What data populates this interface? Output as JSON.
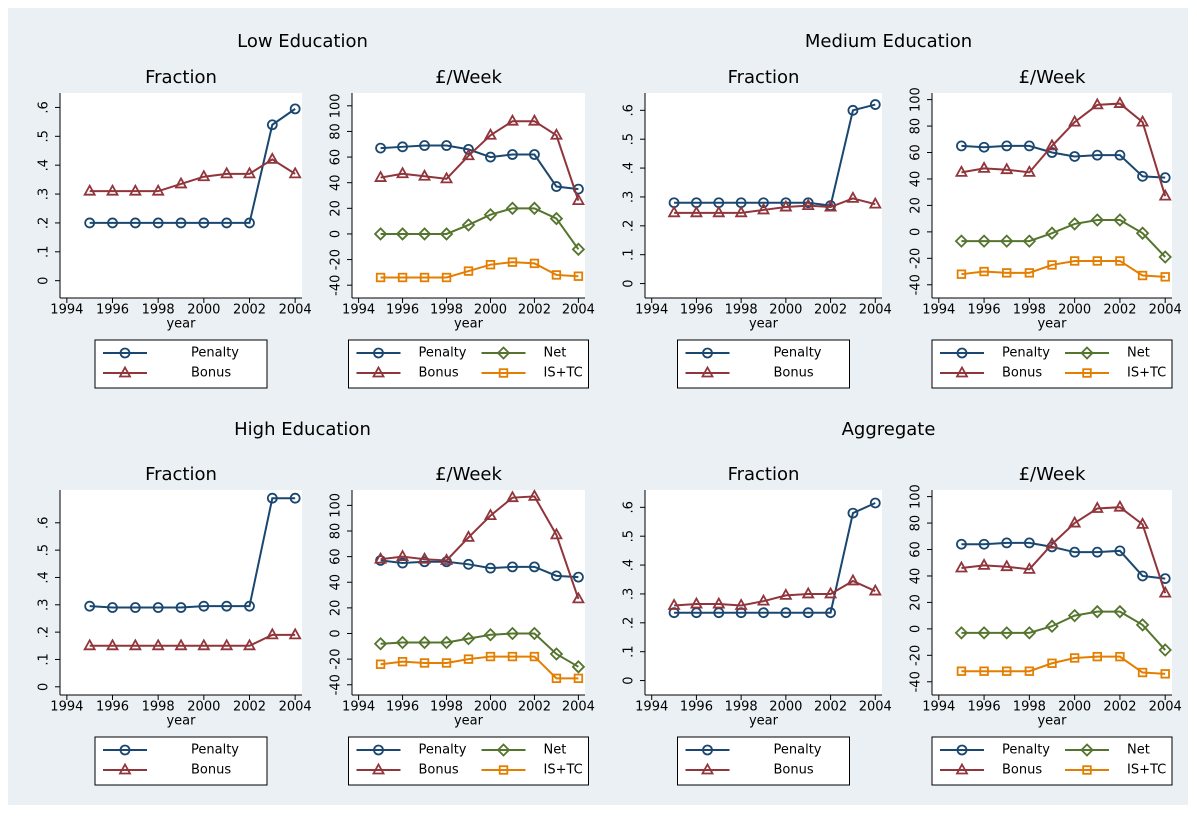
{
  "chart_data": [
    {
      "type": "line",
      "section_title": "Low Education",
      "title": "Fraction",
      "x_label": "year",
      "x": [
        1995,
        1996,
        1997,
        1998,
        1999,
        2000,
        2001,
        2002,
        2003,
        2004
      ],
      "xlim": [
        1993.7,
        2004.3
      ],
      "xticks": [
        1994,
        1996,
        1998,
        2000,
        2002,
        2004
      ],
      "ylim": [
        -0.06,
        0.65
      ],
      "yticks": [
        0,
        {
          "value": 0.1,
          "label": ".1"
        },
        {
          "value": 0.2,
          "label": ".2"
        },
        {
          "value": 0.3,
          "label": ".3"
        },
        {
          "value": 0.4,
          "label": ".4"
        },
        {
          "value": 0.5,
          "label": ".5"
        },
        {
          "value": 0.6,
          "label": ".6"
        }
      ],
      "series": [
        {
          "name": "Penalty",
          "color": "#1a476f",
          "marker": "circle",
          "values": [
            0.2,
            0.2,
            0.2,
            0.2,
            0.2,
            0.2,
            0.2,
            0.2,
            0.54,
            0.595
          ]
        },
        {
          "name": "Bonus",
          "color": "#90353b",
          "marker": "triangle",
          "values": [
            0.31,
            0.31,
            0.31,
            0.31,
            0.335,
            0.36,
            0.37,
            0.37,
            0.42,
            0.37
          ]
        }
      ]
    },
    {
      "type": "line",
      "title": "£/Week",
      "x_label": "year",
      "x": [
        1995,
        1996,
        1997,
        1998,
        1999,
        2000,
        2001,
        2002,
        2003,
        2004
      ],
      "xlim": [
        1993.7,
        2004.3
      ],
      "xticks": [
        1994,
        1996,
        1998,
        2000,
        2002,
        2004
      ],
      "ylim": [
        -50,
        110
      ],
      "yticks": [
        -40,
        -20,
        0,
        20,
        40,
        60,
        80,
        100
      ],
      "series": [
        {
          "name": "Penalty",
          "color": "#1a476f",
          "marker": "circle",
          "values": [
            67,
            68,
            69,
            69,
            66,
            60,
            62,
            62,
            37,
            35
          ]
        },
        {
          "name": "Bonus",
          "color": "#90353b",
          "marker": "triangle",
          "values": [
            44,
            47,
            45,
            43,
            61,
            77,
            88,
            88,
            77,
            26
          ]
        },
        {
          "name": "Net",
          "color": "#55752f",
          "marker": "diamond",
          "values": [
            0,
            0,
            0,
            0,
            7,
            15,
            20,
            20,
            12,
            -12
          ]
        },
        {
          "name": "IS+TC",
          "color": "#e37e00",
          "marker": "square",
          "values": [
            -34,
            -34,
            -34,
            -34,
            -29,
            -24,
            -22,
            -23,
            -32,
            -33
          ]
        }
      ]
    },
    {
      "type": "line",
      "section_title": "Medium Education",
      "title": "Fraction",
      "x_label": "year",
      "x": [
        1995,
        1996,
        1997,
        1998,
        1999,
        2000,
        2001,
        2002,
        2003,
        2004
      ],
      "xlim": [
        1993.7,
        2004.3
      ],
      "xticks": [
        1994,
        1996,
        1998,
        2000,
        2002,
        2004
      ],
      "ylim": [
        -0.05,
        0.66
      ],
      "yticks": [
        0,
        {
          "value": 0.1,
          "label": ".1"
        },
        {
          "value": 0.2,
          "label": ".2"
        },
        {
          "value": 0.3,
          "label": ".3"
        },
        {
          "value": 0.4,
          "label": ".4"
        },
        {
          "value": 0.5,
          "label": ".5"
        },
        {
          "value": 0.6,
          "label": ".6"
        }
      ],
      "series": [
        {
          "name": "Penalty",
          "color": "#1a476f",
          "marker": "circle",
          "values": [
            0.28,
            0.28,
            0.28,
            0.28,
            0.28,
            0.28,
            0.28,
            0.27,
            0.6,
            0.62
          ]
        },
        {
          "name": "Bonus",
          "color": "#90353b",
          "marker": "triangle",
          "values": [
            0.245,
            0.245,
            0.245,
            0.245,
            0.255,
            0.265,
            0.27,
            0.265,
            0.295,
            0.275
          ]
        }
      ]
    },
    {
      "type": "line",
      "title": "£/Week",
      "x_label": "year",
      "x": [
        1995,
        1996,
        1997,
        1998,
        1999,
        2000,
        2001,
        2002,
        2003,
        2004
      ],
      "xlim": [
        1993.7,
        2004.3
      ],
      "xticks": [
        1994,
        1996,
        1998,
        2000,
        2002,
        2004
      ],
      "ylim": [
        -50,
        105
      ],
      "yticks": [
        -40,
        -20,
        0,
        20,
        40,
        60,
        80,
        100
      ],
      "series": [
        {
          "name": "Penalty",
          "color": "#1a476f",
          "marker": "circle",
          "values": [
            65,
            64,
            65,
            65,
            60,
            57,
            58,
            58,
            42,
            41
          ]
        },
        {
          "name": "Bonus",
          "color": "#90353b",
          "marker": "triangle",
          "values": [
            45,
            48,
            47,
            45,
            65,
            83,
            96,
            97,
            83,
            27
          ]
        },
        {
          "name": "Net",
          "color": "#55752f",
          "marker": "diamond",
          "values": [
            -7,
            -7,
            -7,
            -7,
            -1,
            6,
            9,
            9,
            -1,
            -19
          ]
        },
        {
          "name": "IS+TC",
          "color": "#e37e00",
          "marker": "square",
          "values": [
            -32,
            -30,
            -31,
            -31,
            -25,
            -22,
            -22,
            -22,
            -33,
            -34
          ]
        }
      ]
    },
    {
      "type": "line",
      "section_title": "High Education",
      "title": "Fraction",
      "x_label": "year",
      "x": [
        1995,
        1996,
        1997,
        1998,
        1999,
        2000,
        2001,
        2002,
        2003,
        2004
      ],
      "xlim": [
        1993.7,
        2004.3
      ],
      "xticks": [
        1994,
        1996,
        1998,
        2000,
        2002,
        2004
      ],
      "ylim": [
        -0.03,
        0.72
      ],
      "yticks": [
        0,
        {
          "value": 0.1,
          "label": ".1"
        },
        {
          "value": 0.2,
          "label": ".2"
        },
        {
          "value": 0.3,
          "label": ".3"
        },
        {
          "value": 0.4,
          "label": ".4"
        },
        {
          "value": 0.5,
          "label": ".5"
        },
        {
          "value": 0.6,
          "label": ".6"
        }
      ],
      "series": [
        {
          "name": "Penalty",
          "color": "#1a476f",
          "marker": "circle",
          "values": [
            0.295,
            0.29,
            0.29,
            0.29,
            0.29,
            0.295,
            0.295,
            0.295,
            0.69,
            0.69
          ]
        },
        {
          "name": "Bonus",
          "color": "#90353b",
          "marker": "triangle",
          "values": [
            0.15,
            0.15,
            0.15,
            0.15,
            0.15,
            0.15,
            0.15,
            0.15,
            0.19,
            0.19
          ]
        }
      ]
    },
    {
      "type": "line",
      "title": "£/Week",
      "x_label": "year",
      "x": [
        1995,
        1996,
        1997,
        1998,
        1999,
        2000,
        2001,
        2002,
        2003,
        2004
      ],
      "xlim": [
        1993.7,
        2004.3
      ],
      "xticks": [
        1994,
        1996,
        1998,
        2000,
        2002,
        2004
      ],
      "ylim": [
        -48,
        112
      ],
      "yticks": [
        -40,
        -20,
        0,
        20,
        40,
        60,
        80,
        100
      ],
      "series": [
        {
          "name": "Penalty",
          "color": "#1a476f",
          "marker": "circle",
          "values": [
            57,
            55,
            56,
            56,
            54,
            51,
            52,
            52,
            45,
            44
          ]
        },
        {
          "name": "Bonus",
          "color": "#90353b",
          "marker": "triangle",
          "values": [
            58,
            60,
            58,
            57,
            75,
            92,
            106,
            107,
            77,
            27
          ]
        },
        {
          "name": "Net",
          "color": "#55752f",
          "marker": "diamond",
          "values": [
            -8,
            -7,
            -7,
            -7,
            -4,
            -1,
            0,
            0,
            -16,
            -26
          ]
        },
        {
          "name": "IS+TC",
          "color": "#e37e00",
          "marker": "square",
          "values": [
            -24,
            -22,
            -23,
            -23,
            -20,
            -18,
            -18,
            -18,
            -35,
            -35
          ]
        }
      ]
    },
    {
      "type": "line",
      "section_title": "Aggregate",
      "title": "Fraction",
      "x_label": "year",
      "x": [
        1995,
        1996,
        1997,
        1998,
        1999,
        2000,
        2001,
        2002,
        2003,
        2004
      ],
      "xlim": [
        1993.7,
        2004.3
      ],
      "xticks": [
        1994,
        1996,
        1998,
        2000,
        2002,
        2004
      ],
      "ylim": [
        -0.05,
        0.66
      ],
      "yticks": [
        0,
        {
          "value": 0.1,
          "label": ".1"
        },
        {
          "value": 0.2,
          "label": ".2"
        },
        {
          "value": 0.3,
          "label": ".3"
        },
        {
          "value": 0.4,
          "label": ".4"
        },
        {
          "value": 0.5,
          "label": ".5"
        },
        {
          "value": 0.6,
          "label": ".6"
        }
      ],
      "series": [
        {
          "name": "Penalty",
          "color": "#1a476f",
          "marker": "circle",
          "values": [
            0.235,
            0.235,
            0.235,
            0.235,
            0.235,
            0.235,
            0.235,
            0.235,
            0.58,
            0.615
          ]
        },
        {
          "name": "Bonus",
          "color": "#90353b",
          "marker": "triangle",
          "values": [
            0.26,
            0.265,
            0.265,
            0.26,
            0.275,
            0.295,
            0.3,
            0.3,
            0.345,
            0.31
          ]
        }
      ]
    },
    {
      "type": "line",
      "title": "£/Week",
      "x_label": "year",
      "x": [
        1995,
        1996,
        1997,
        1998,
        1999,
        2000,
        2001,
        2002,
        2003,
        2004
      ],
      "xlim": [
        1993.7,
        2004.3
      ],
      "xticks": [
        1994,
        1996,
        1998,
        2000,
        2002,
        2004
      ],
      "ylim": [
        -50,
        105
      ],
      "yticks": [
        -40,
        -20,
        0,
        20,
        40,
        60,
        80,
        100
      ],
      "series": [
        {
          "name": "Penalty",
          "color": "#1a476f",
          "marker": "circle",
          "values": [
            64,
            64,
            65,
            65,
            62,
            58,
            58,
            59,
            40,
            38
          ]
        },
        {
          "name": "Bonus",
          "color": "#90353b",
          "marker": "triangle",
          "values": [
            46,
            48,
            47,
            45,
            64,
            80,
            91,
            92,
            79,
            27
          ]
        },
        {
          "name": "Net",
          "color": "#55752f",
          "marker": "diamond",
          "values": [
            -3,
            -3,
            -3,
            -3,
            2,
            10,
            13,
            13,
            3,
            -16
          ]
        },
        {
          "name": "IS+TC",
          "color": "#e37e00",
          "marker": "square",
          "values": [
            -32,
            -32,
            -32,
            -32,
            -26,
            -22,
            -21,
            -21,
            -33,
            -34
          ]
        }
      ]
    }
  ]
}
